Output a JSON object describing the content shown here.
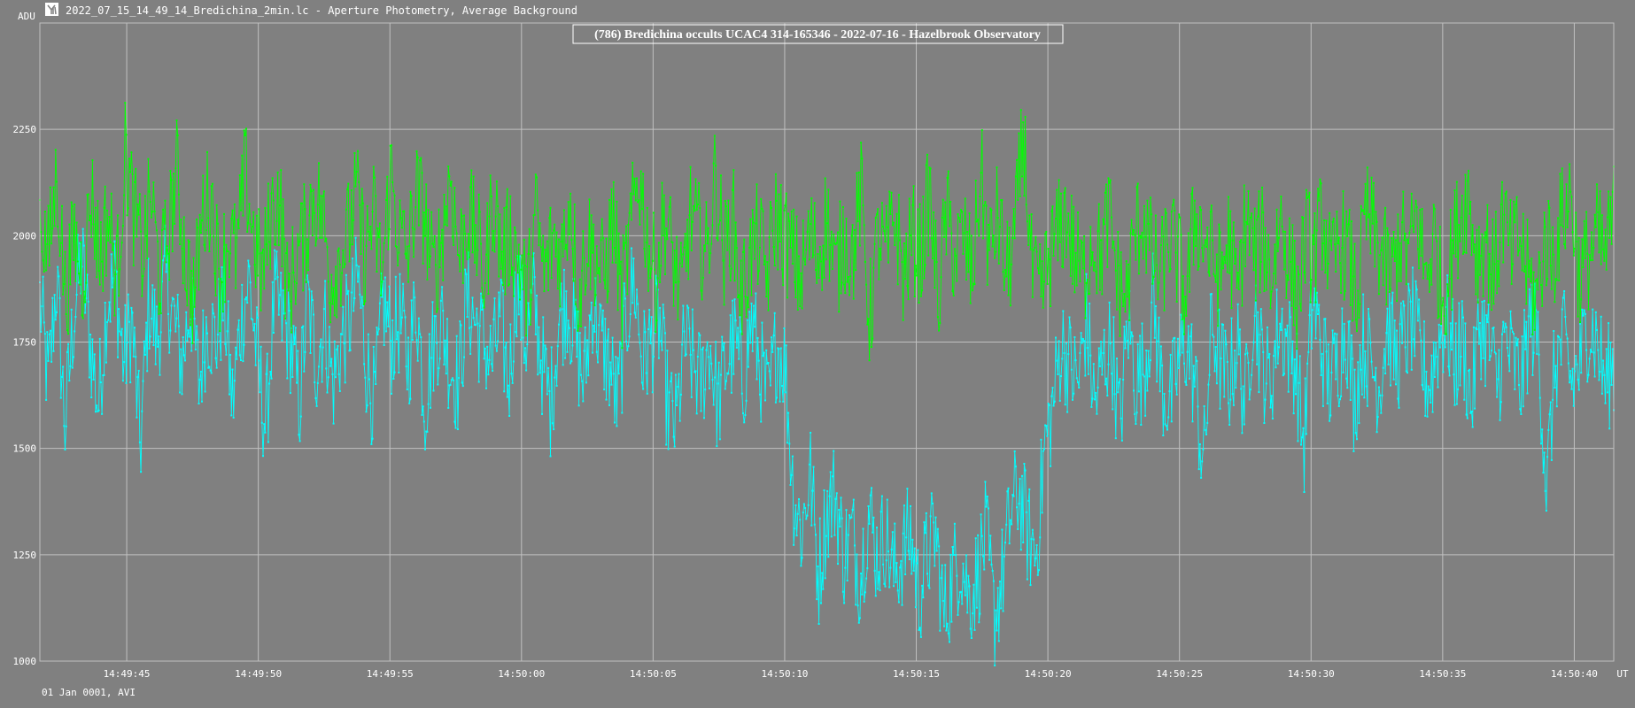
{
  "window": {
    "title": "2022_07_15_14_49_14_Bredichina_2min.lc - Aperture Photometry, Average Background",
    "icon": "app-logo-icon"
  },
  "footer": {
    "date_text": "01 Jan 0001, AVI"
  },
  "colors": {
    "background": "#808080",
    "grid": "#c0c0c0",
    "target": "#00ffff",
    "comparison": "#00ff00",
    "text": "#ffffff"
  },
  "chart_data": {
    "type": "line",
    "title": "(786) Bredichina occults UCAC4 314-165346 - 2022-07-16 - Hazelbrook Observatory",
    "ylabel": "ADU",
    "xlabel": "UT",
    "ylim": [
      1000,
      2500
    ],
    "xlim": [
      "14:49:41.7",
      "14:50:41.5"
    ],
    "yticks": [
      1000,
      1250,
      1500,
      1750,
      2000,
      2250
    ],
    "xticks": [
      "14:49:45",
      "14:49:50",
      "14:49:55",
      "14:50:00",
      "14:50:05",
      "14:50:10",
      "14:50:15",
      "14:50:20",
      "14:50:25",
      "14:50:30",
      "14:50:35",
      "14:50:40"
    ],
    "grid": true,
    "frame_interval_s": 0.04,
    "series": [
      {
        "color": "#00ffff",
        "x_start": "14:49:41.7",
        "x_end": "14:50:41.5",
        "approx_values": [
          1850,
          1650,
          1900,
          1550,
          1800,
          1950,
          1750,
          1600,
          1850,
          1900,
          1700,
          1800,
          1500,
          1850,
          1750,
          1900,
          1800,
          1700,
          1850,
          1650,
          1800,
          1750,
          1850,
          1600,
          1800,
          1900,
          1700,
          1550,
          1850,
          1800,
          1750,
          1600,
          1850,
          1700,
          1800,
          1650,
          1750,
          1800,
          1900,
          1700,
          1600,
          1850,
          1750,
          1800,
          1700,
          1850,
          1600,
          1750,
          1800,
          1700,
          1650,
          1850,
          1800,
          1750,
          1700,
          1800,
          1650,
          1900,
          1750,
          1850,
          1700,
          1600,
          1800,
          1850,
          1750,
          1650,
          1850,
          1750,
          1700,
          1600,
          1800,
          1900,
          1700,
          1750,
          1800,
          1600,
          1550,
          1750,
          1700,
          1650,
          1750,
          1600,
          1700,
          1750,
          1650,
          1800,
          1700,
          1600,
          1750,
          1700,
          1400,
          1300,
          1450,
          1200,
          1350,
          1400,
          1250,
          1300,
          1200,
          1350,
          1250,
          1300,
          1200,
          1250,
          1300,
          1150,
          1250,
          1300,
          1100,
          1200,
          1250,
          1150,
          1200,
          1300,
          1100,
          1200,
          1350,
          1400,
          1300,
          1250,
          1500,
          1600,
          1750,
          1700,
          1650,
          1800,
          1600,
          1700,
          1750,
          1550,
          1800,
          1650,
          1700,
          1850,
          1650,
          1600,
          1700,
          1750,
          1650,
          1450,
          1800,
          1700,
          1650,
          1750,
          1600,
          1850,
          1700,
          1650,
          1800,
          1750,
          1700,
          1500,
          1850,
          1750,
          1650,
          1700,
          1800,
          1600,
          1750,
          1700,
          1650,
          1800,
          1700,
          1750,
          1800,
          1700,
          1650,
          1750,
          1800,
          1700,
          1750,
          1600,
          1800,
          1750,
          1650,
          1750,
          1700,
          1650,
          1800,
          1750,
          1400,
          1700,
          1750,
          1650,
          1700,
          1800,
          1750,
          1650,
          1700
        ]
      },
      {
        "color": "#00ff00",
        "x_start": "14:49:41.7",
        "x_end": "14:50:41.5",
        "approx_values": [
          2050,
          1950,
          2150,
          1850,
          2000,
          1900,
          2100,
          1950,
          2050,
          1900,
          2200,
          2050,
          1950,
          2100,
          1900,
          2000,
          2150,
          1950,
          1850,
          2050,
          2100,
          1900,
          2000,
          1950,
          2150,
          2000,
          1900,
          2050,
          2100,
          1850,
          1950,
          2000,
          2100,
          2050,
          1900,
          1950,
          2000,
          2100,
          1950,
          2050,
          1900,
          2150,
          2000,
          1950,
          2100,
          2050,
          1900,
          2000,
          2150,
          1950,
          2050,
          2000,
          1900,
          2100,
          1950,
          2000,
          1950,
          1850,
          2050,
          1900,
          2000,
          1950,
          2100,
          1850,
          2000,
          1950,
          1900,
          2050,
          1850,
          2000,
          2150,
          2000,
          1900,
          2050,
          1950,
          1850,
          2050,
          2000,
          1950,
          2150,
          1950,
          2050,
          1850,
          1950,
          2000,
          1900,
          2050,
          2000,
          1950,
          1900,
          2000,
          1950,
          2050,
          1900,
          2000,
          1950,
          2100,
          1800,
          2000,
          1950,
          2050,
          1900,
          2000,
          1950,
          2100,
          1850,
          2050,
          1950,
          2000,
          1900,
          2150,
          1950,
          2050,
          1900,
          2000,
          2250,
          1900,
          1850,
          1950,
          2000,
          2050,
          1950,
          1900,
          2000,
          1950,
          2050,
          1900,
          1850,
          2000,
          2050,
          1950,
          1900,
          2000,
          1950,
          1850,
          2050,
          2000,
          1950,
          1900,
          2000,
          1850,
          2050,
          1950,
          2000,
          1900,
          2050,
          1950,
          1850,
          2000,
          1950,
          2050,
          1900,
          2000,
          1950,
          1850,
          2050,
          2000,
          1950,
          1900,
          2000,
          1950,
          2050,
          1900,
          2000,
          1850,
          1950,
          2050,
          2100,
          1950,
          2000,
          1900,
          2050,
          1950,
          2000,
          1900,
          1850,
          2000,
          1950,
          2050,
          2100,
          1900,
          1950,
          2000,
          1950,
          2050
        ]
      }
    ]
  }
}
